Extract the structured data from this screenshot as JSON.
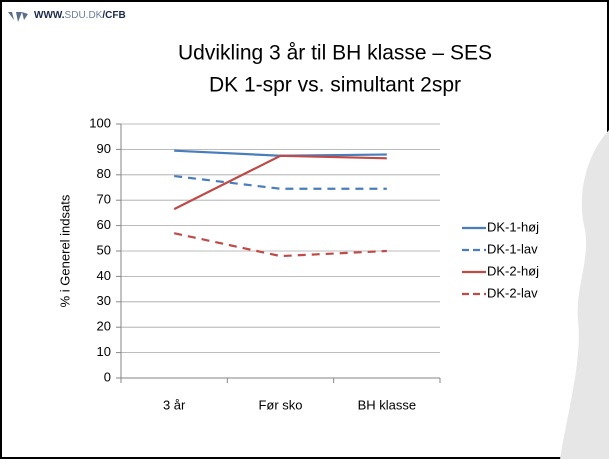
{
  "logo": [
    "WWW.",
    "SDU.DK",
    "/CFB"
  ],
  "chart_data": {
    "type": "line",
    "title": [
      "Udvikling 3 år til BH klasse – SES",
      "DK 1-spr vs. simultant 2spr"
    ],
    "y_label": "% i Generel indsats",
    "categories": [
      "3 år",
      "Før sko",
      "BH klasse"
    ],
    "series": [
      {
        "name": "DK-1-høj",
        "color": "#4a7ebb",
        "dashed": false,
        "values": [
          89.5,
          87.5,
          88
        ]
      },
      {
        "name": "DK-1-lav",
        "color": "#4a7ebb",
        "dashed": true,
        "values": [
          79.5,
          74.5,
          74.5
        ]
      },
      {
        "name": "DK-2-høj",
        "color": "#be4b48",
        "dashed": false,
        "values": [
          66.5,
          87.5,
          86.5
        ]
      },
      {
        "name": "DK-2-lav",
        "color": "#be4b48",
        "dashed": true,
        "values": [
          57,
          48,
          50
        ]
      }
    ],
    "ylim": [
      0,
      100
    ],
    "yticks": [
      0,
      10,
      20,
      30,
      40,
      50,
      60,
      70,
      80,
      90,
      100
    ],
    "grid": true,
    "legend": "right"
  }
}
